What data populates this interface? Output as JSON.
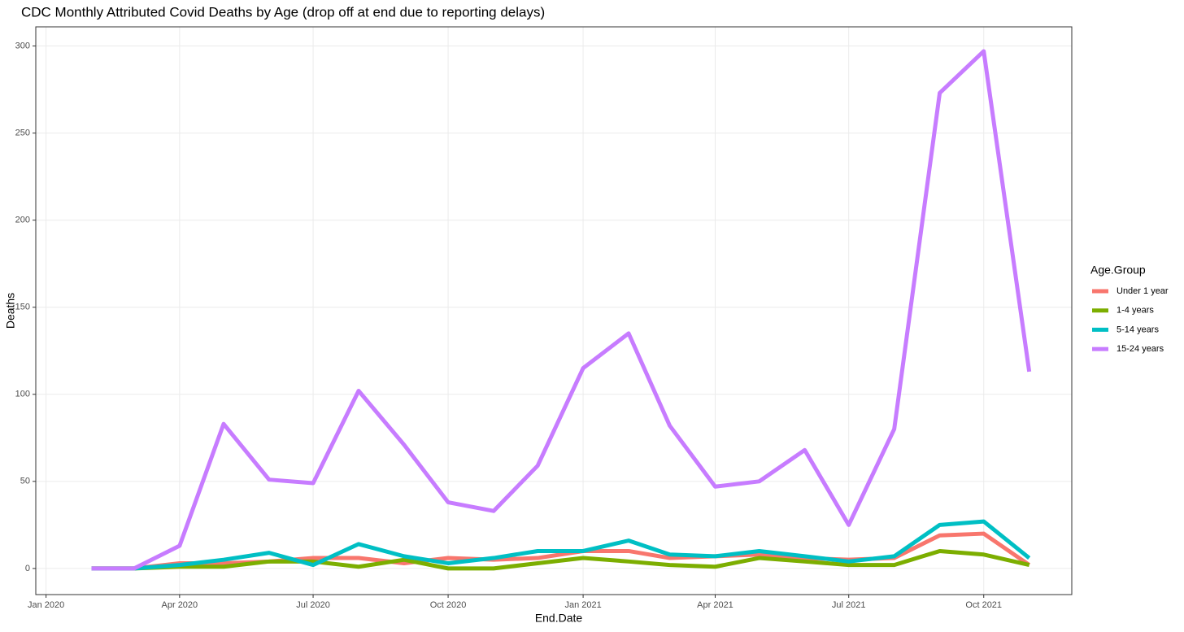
{
  "chart_data": {
    "type": "line",
    "title": "CDC Monthly Attributed Covid Deaths by Age (drop off at end due to reporting delays)",
    "x_label": "End.Date",
    "y_label": "Deaths",
    "legend_title": "Age.Group",
    "legend": "right",
    "grid": true,
    "x": [
      "2020-02",
      "2020-03",
      "2020-04",
      "2020-05",
      "2020-06",
      "2020-07",
      "2020-08",
      "2020-09",
      "2020-10",
      "2020-11",
      "2020-12",
      "2021-01",
      "2021-02",
      "2021-03",
      "2021-04",
      "2021-05",
      "2021-06",
      "2021-07",
      "2021-08",
      "2021-09",
      "2021-10",
      "2021-11"
    ],
    "series": [
      {
        "name": "Under 1 year",
        "color": "#f8766d",
        "values": [
          0,
          0,
          3,
          3,
          4,
          6,
          6,
          3,
          6,
          5,
          6,
          10,
          10,
          6,
          7,
          8,
          6,
          5,
          6,
          19,
          20,
          2
        ]
      },
      {
        "name": "1-4 years",
        "color": "#7cae00",
        "values": [
          0,
          0,
          1,
          1,
          4,
          4,
          1,
          5,
          0,
          0,
          3,
          6,
          4,
          2,
          1,
          6,
          4,
          2,
          2,
          10,
          8,
          2
        ]
      },
      {
        "name": "5-14 years",
        "color": "#00bfc4",
        "values": [
          0,
          0,
          2,
          5,
          9,
          2,
          14,
          7,
          3,
          6,
          10,
          10,
          16,
          8,
          7,
          10,
          7,
          4,
          7,
          25,
          27,
          6
        ]
      },
      {
        "name": "15-24 years",
        "color": "#c77cff",
        "values": [
          0,
          0,
          13,
          83,
          51,
          49,
          102,
          71,
          38,
          33,
          59,
          115,
          135,
          82,
          47,
          50,
          68,
          25,
          80,
          273,
          297,
          113
        ]
      }
    ],
    "xlim": [
      "2019-12-25",
      "2021-11-30"
    ],
    "xticks": [
      {
        "value": "2020-01",
        "label": "Jan 2020"
      },
      {
        "value": "2020-04",
        "label": "Apr 2020"
      },
      {
        "value": "2020-07",
        "label": "Jul 2020"
      },
      {
        "value": "2020-10",
        "label": "Oct 2020"
      },
      {
        "value": "2021-01",
        "label": "Jan 2021"
      },
      {
        "value": "2021-04",
        "label": "Apr 2021"
      },
      {
        "value": "2021-07",
        "label": "Jul 2021"
      },
      {
        "value": "2021-10",
        "label": "Oct 2021"
      }
    ],
    "ylim": [
      -15,
      311
    ],
    "yticks": [
      0,
      50,
      100,
      150,
      200,
      250,
      300
    ]
  }
}
